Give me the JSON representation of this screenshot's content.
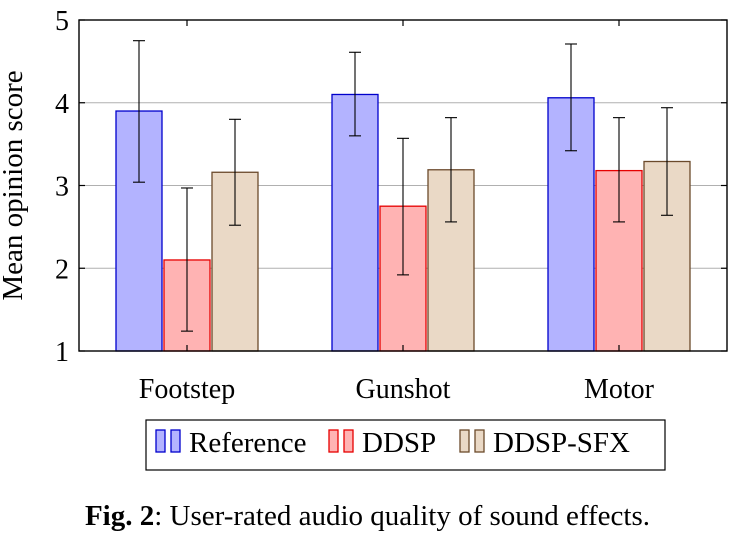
{
  "chart_data": {
    "type": "bar",
    "categories": [
      "Footstep",
      "Gunshot",
      "Motor"
    ],
    "ylabel": "Mean opinion score",
    "ylim": [
      1,
      5
    ],
    "yticks": [
      1,
      2,
      3,
      4,
      5
    ],
    "grid": "horizontal",
    "legend_position": "bottom",
    "series": [
      {
        "name": "Reference",
        "color": "#b3b3ff",
        "edge": "#0000cc",
        "values": [
          3.9,
          4.1,
          4.06
        ],
        "error_low": [
          3.04,
          3.6,
          3.42
        ],
        "error_high": [
          4.75,
          4.61,
          4.71
        ]
      },
      {
        "name": "DDSP",
        "color": "#ffb3b3",
        "edge": "#e60000",
        "values": [
          2.1,
          2.75,
          3.18
        ],
        "error_low": [
          1.24,
          1.92,
          2.56
        ],
        "error_high": [
          2.97,
          3.57,
          3.82
        ]
      },
      {
        "name": "DDSP-SFX",
        "color": "#ead9c6",
        "edge": "#6b4a2b",
        "values": [
          3.16,
          3.19,
          3.29
        ],
        "error_low": [
          2.52,
          2.56,
          2.64
        ],
        "error_high": [
          3.8,
          3.82,
          3.94
        ]
      }
    ]
  },
  "caption": {
    "label": "Fig. 2",
    "text": ": User-rated audio quality of sound effects."
  }
}
